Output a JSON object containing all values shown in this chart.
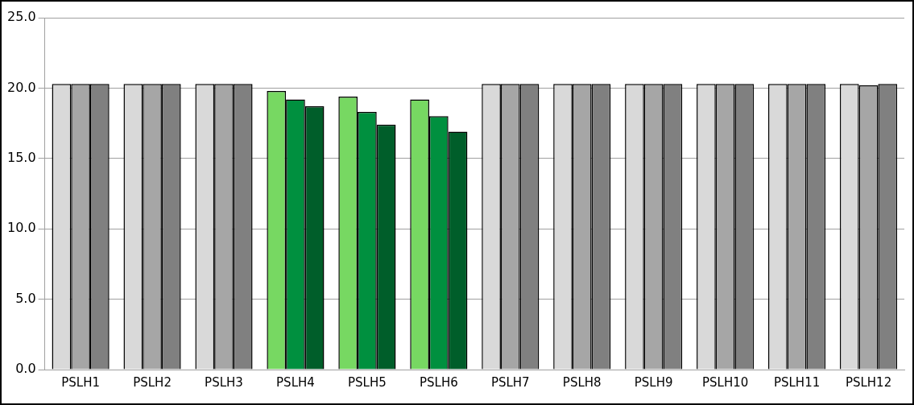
{
  "chart_data": {
    "type": "bar",
    "categories": [
      "PSLH1",
      "PSLH2",
      "PSLH3",
      "PSLH4",
      "PSLH5",
      "PSLH6",
      "PSLH7",
      "PSLH8",
      "PSLH9",
      "PSLH10",
      "PSLH11",
      "PSLH12"
    ],
    "series": [
      {
        "colors": [
          "#d9d9d9",
          "#d9d9d9",
          "#d9d9d9",
          "#77d862",
          "#77d862",
          "#77d862",
          "#d9d9d9",
          "#d9d9d9",
          "#d9d9d9",
          "#d9d9d9",
          "#d9d9d9",
          "#d9d9d9"
        ],
        "values": [
          20.3,
          20.3,
          20.3,
          19.8,
          19.4,
          19.2,
          20.3,
          20.3,
          20.3,
          20.3,
          20.3,
          20.3
        ]
      },
      {
        "colors": [
          "#a6a6a6",
          "#a6a6a6",
          "#a6a6a6",
          "#00903f",
          "#00903f",
          "#00903f",
          "#a6a6a6",
          "#a6a6a6",
          "#a6a6a6",
          "#a6a6a6",
          "#a6a6a6",
          "#a6a6a6"
        ],
        "values": [
          20.3,
          20.3,
          20.3,
          19.2,
          18.3,
          18.0,
          20.3,
          20.3,
          20.3,
          20.3,
          20.3,
          20.2
        ]
      },
      {
        "colors": [
          "#808080",
          "#808080",
          "#808080",
          "#005e2a",
          "#005e2a",
          "#005e2a",
          "#808080",
          "#808080",
          "#808080",
          "#808080",
          "#808080",
          "#808080"
        ],
        "values": [
          20.3,
          20.3,
          20.3,
          18.7,
          17.4,
          16.9,
          20.3,
          20.3,
          20.3,
          20.3,
          20.3,
          20.3
        ]
      }
    ],
    "ylim": [
      0,
      25
    ],
    "yticks": [
      {
        "value": 0,
        "label": "0.0"
      },
      {
        "value": 5,
        "label": "5.0"
      },
      {
        "value": 10,
        "label": "10.0"
      },
      {
        "value": 15,
        "label": "15.0"
      },
      {
        "value": 20,
        "label": "20.0"
      },
      {
        "value": 25,
        "label": "25.0"
      }
    ],
    "grid": "y",
    "legend": false
  }
}
